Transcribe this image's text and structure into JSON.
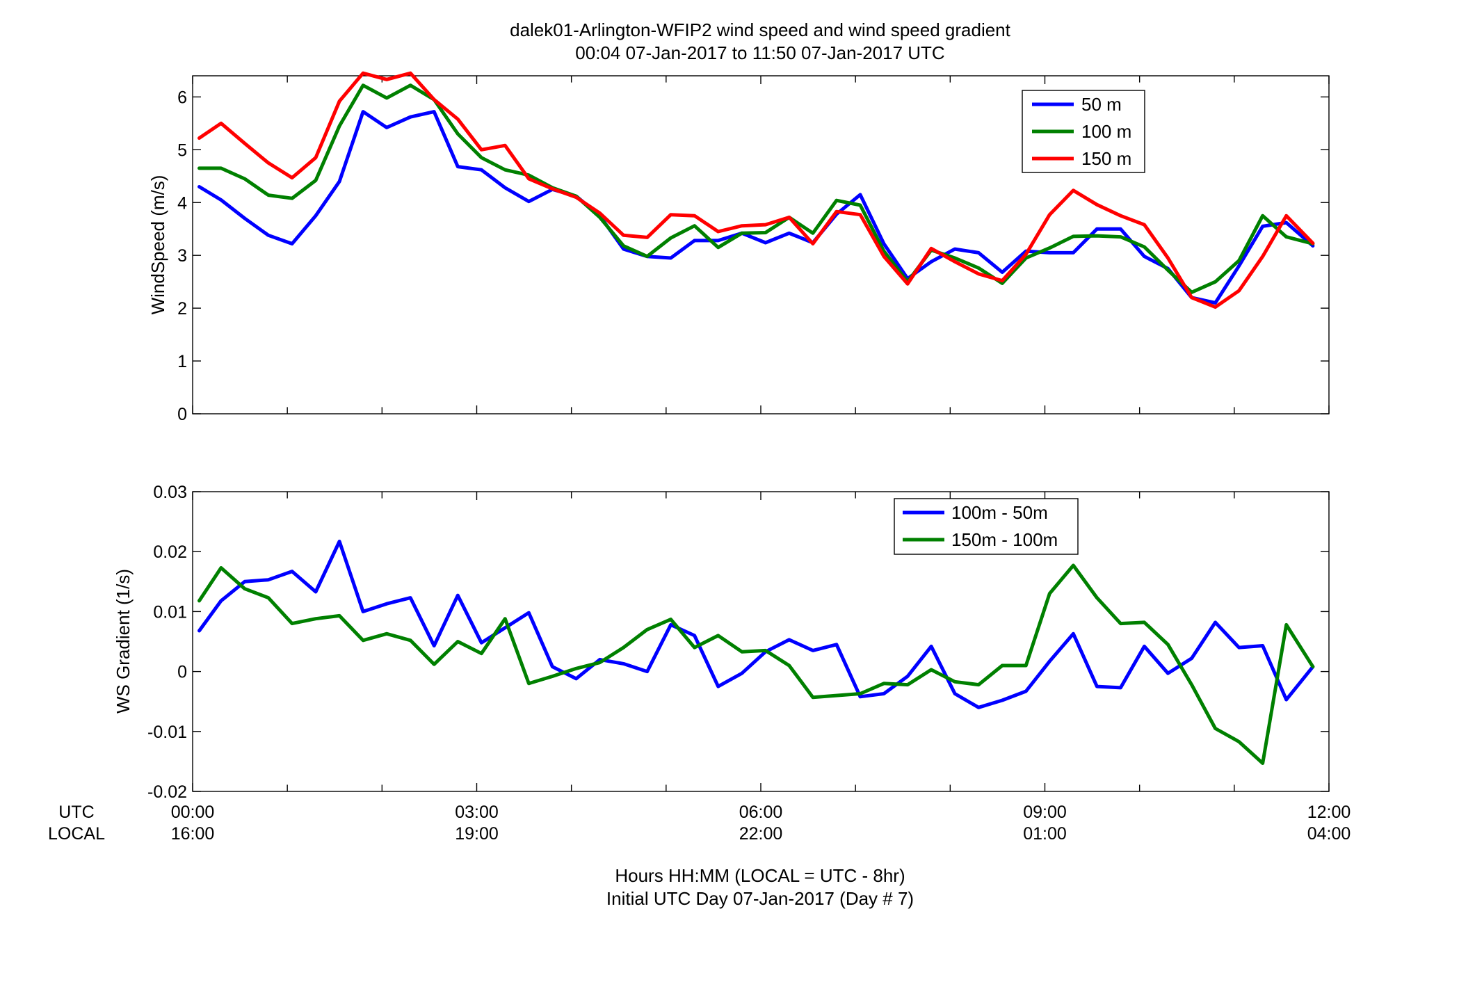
{
  "title": {
    "line1": "dalek01-Arlington-WFIP2  wind speed and wind speed gradient",
    "line2": "00:04 07-Jan-2017 to 11:50 07-Jan-2017  UTC"
  },
  "xaxis": {
    "utc_label": "UTC",
    "local_label": "LOCAL",
    "utc_ticks": [
      "00:00",
      "03:00",
      "06:00",
      "09:00",
      "12:00"
    ],
    "local_ticks": [
      "16:00",
      "19:00",
      "22:00",
      "01:00",
      "04:00"
    ],
    "xlabel_line1": "Hours HH:MM  (LOCAL = UTC - 8hr)",
    "xlabel_line2": "Initial UTC Day 07-Jan-2017 (Day # 7)"
  },
  "chart_data": [
    {
      "type": "line",
      "ylabel": "WindSpeed (m/s)",
      "xlim": [
        0,
        12
      ],
      "ylim": [
        0,
        6.4
      ],
      "yticks": [
        0,
        1,
        2,
        3,
        4,
        5,
        6
      ],
      "ytick_labels": [
        "0",
        "1",
        "2",
        "3",
        "4",
        "5",
        "6"
      ],
      "x_minor_ticks_hours": 1,
      "grid": false,
      "legend_position": "top-right",
      "x": [
        0.07,
        0.3,
        0.55,
        0.8,
        1.05,
        1.3,
        1.55,
        1.8,
        2.05,
        2.3,
        2.55,
        2.8,
        3.05,
        3.3,
        3.55,
        3.8,
        4.05,
        4.3,
        4.55,
        4.8,
        5.05,
        5.3,
        5.55,
        5.8,
        6.05,
        6.3,
        6.55,
        6.8,
        7.05,
        7.3,
        7.55,
        7.8,
        8.05,
        8.3,
        8.55,
        8.8,
        9.05,
        9.3,
        9.55,
        9.8,
        10.05,
        10.3,
        10.55,
        10.8,
        11.05,
        11.3,
        11.55,
        11.83
      ],
      "series": [
        {
          "name": "50 m",
          "color": "#0000ff",
          "values": [
            4.3,
            4.05,
            3.7,
            3.38,
            3.22,
            3.75,
            4.4,
            5.72,
            5.42,
            5.62,
            5.72,
            4.68,
            4.62,
            4.28,
            4.02,
            4.25,
            4.12,
            3.75,
            3.12,
            2.98,
            2.95,
            3.28,
            3.28,
            3.42,
            3.24,
            3.42,
            3.24,
            3.78,
            4.15,
            3.22,
            2.56,
            2.88,
            3.12,
            3.05,
            2.68,
            3.08,
            3.05,
            3.05,
            3.5,
            3.5,
            2.98,
            2.75,
            2.2,
            2.1,
            2.8,
            3.55,
            3.62,
            3.18
          ]
        },
        {
          "name": "100 m",
          "color": "#008000",
          "values": [
            4.65,
            4.65,
            4.45,
            4.14,
            4.08,
            4.42,
            5.45,
            6.22,
            5.98,
            6.22,
            5.95,
            5.3,
            4.85,
            4.62,
            4.52,
            4.28,
            4.12,
            3.72,
            3.18,
            2.98,
            3.33,
            3.56,
            3.15,
            3.42,
            3.43,
            3.72,
            3.42,
            4.04,
            3.95,
            3.08,
            2.5,
            3.1,
            2.95,
            2.76,
            2.47,
            2.95,
            3.14,
            3.36,
            3.37,
            3.35,
            3.16,
            2.72,
            2.3,
            2.5,
            2.9,
            3.75,
            3.35,
            3.22
          ]
        },
        {
          "name": "150 m",
          "color": "#ff0000",
          "values": [
            5.22,
            5.5,
            5.12,
            4.75,
            4.47,
            4.85,
            5.92,
            6.45,
            6.33,
            6.45,
            5.95,
            5.58,
            5.0,
            5.08,
            4.45,
            4.26,
            4.1,
            3.8,
            3.38,
            3.34,
            3.77,
            3.75,
            3.45,
            3.56,
            3.58,
            3.72,
            3.22,
            3.83,
            3.77,
            2.98,
            2.46,
            3.13,
            2.88,
            2.65,
            2.52,
            3.02,
            3.77,
            4.23,
            3.96,
            3.75,
            3.58,
            2.95,
            2.2,
            2.02,
            2.33,
            2.98,
            3.75,
            3.23
          ]
        }
      ]
    },
    {
      "type": "line",
      "ylabel": "WS Gradient (1/s)",
      "xlim": [
        0,
        12
      ],
      "ylim": [
        -0.02,
        0.03
      ],
      "yticks": [
        -0.02,
        -0.01,
        0,
        0.01,
        0.02,
        0.03
      ],
      "ytick_labels": [
        "-0.02",
        "-0.01",
        "0",
        "0.01",
        "0.02",
        "0.03"
      ],
      "x_minor_ticks_hours": 1,
      "grid": false,
      "legend_position": "top-right",
      "x": [
        0.07,
        0.3,
        0.55,
        0.8,
        1.05,
        1.3,
        1.55,
        1.8,
        2.05,
        2.3,
        2.55,
        2.8,
        3.05,
        3.3,
        3.55,
        3.8,
        4.05,
        4.3,
        4.55,
        4.8,
        5.05,
        5.3,
        5.55,
        5.8,
        6.05,
        6.3,
        6.55,
        6.8,
        7.05,
        7.3,
        7.55,
        7.8,
        8.05,
        8.3,
        8.55,
        8.8,
        9.05,
        9.3,
        9.55,
        9.8,
        10.05,
        10.3,
        10.55,
        10.8,
        11.05,
        11.3,
        11.55,
        11.83
      ],
      "series": [
        {
          "name": "100m - 50m",
          "color": "#0000ff",
          "values": [
            0.0068,
            0.0118,
            0.015,
            0.0153,
            0.0167,
            0.0133,
            0.0217,
            0.01,
            0.0113,
            0.0123,
            0.0043,
            0.0127,
            0.0048,
            0.0073,
            0.0098,
            0.0008,
            -0.0012,
            0.002,
            0.0013,
            0.0,
            0.0078,
            0.006,
            -0.0025,
            -0.0003,
            0.0033,
            0.0053,
            0.0035,
            0.0045,
            -0.0042,
            -0.0037,
            -0.0008,
            0.0042,
            -0.0037,
            -0.006,
            -0.0048,
            -0.0033,
            0.0017,
            0.0063,
            -0.0025,
            -0.0027,
            0.0042,
            -0.0003,
            0.0022,
            0.0082,
            0.004,
            0.0043,
            -0.0047,
            0.0008
          ]
        },
        {
          "name": "150m - 100m",
          "color": "#008000",
          "values": [
            0.0118,
            0.0173,
            0.0138,
            0.0123,
            0.008,
            0.0088,
            0.0093,
            0.0052,
            0.0063,
            0.0052,
            0.0012,
            0.005,
            0.003,
            0.0088,
            -0.002,
            -0.0008,
            0.0005,
            0.0015,
            0.004,
            0.007,
            0.0087,
            0.004,
            0.006,
            0.0033,
            0.0035,
            0.001,
            -0.0043,
            -0.004,
            -0.0037,
            -0.002,
            -0.0022,
            0.0003,
            -0.0017,
            -0.0022,
            0.001,
            0.001,
            0.013,
            0.0177,
            0.0123,
            0.008,
            0.0082,
            0.0045,
            -0.0022,
            -0.0095,
            -0.0117,
            -0.0153,
            0.0078,
            0.0008
          ]
        }
      ]
    }
  ]
}
